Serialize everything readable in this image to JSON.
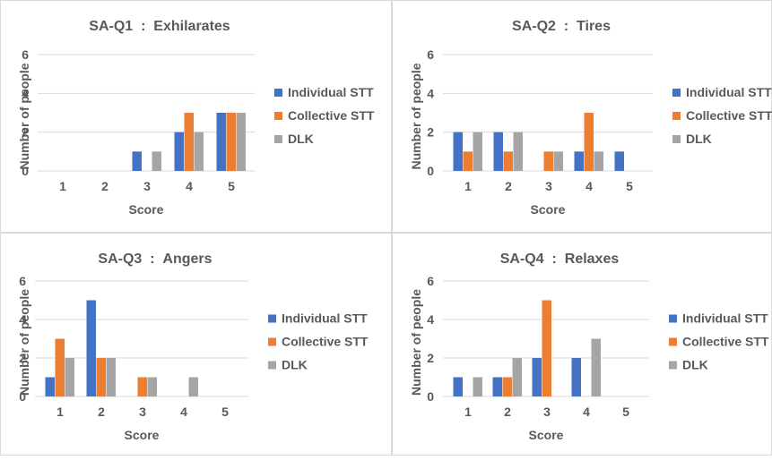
{
  "colors": {
    "individual": "#4472C4",
    "collective": "#ED7D31",
    "dlk": "#A5A5A5",
    "gridline": "#D9D9D9",
    "axis": "#D9D9D9",
    "text": "#595959",
    "border": "#D9D9D9"
  },
  "chart_data": [
    {
      "type": "bar",
      "title": "SA-Q1  :  Exhilarates",
      "xlabel": "Score",
      "ylabel": "Number of people",
      "categories": [
        "1",
        "2",
        "3",
        "4",
        "5"
      ],
      "yticks": [
        "0",
        "2",
        "4",
        "6"
      ],
      "ylim": [
        0,
        6
      ],
      "grid": true,
      "legend_position": "right",
      "series": [
        {
          "name": "Individual STT",
          "values": [
            0,
            0,
            1,
            2,
            3
          ]
        },
        {
          "name": "Collective STT",
          "values": [
            0,
            0,
            0,
            3,
            3
          ]
        },
        {
          "name": "DLK",
          "values": [
            0,
            0,
            1,
            2,
            3
          ]
        }
      ]
    },
    {
      "type": "bar",
      "title": "SA-Q2  :  Tires",
      "xlabel": "Score",
      "ylabel": "Number of people",
      "categories": [
        "1",
        "2",
        "3",
        "4",
        "5"
      ],
      "yticks": [
        "0",
        "2",
        "4",
        "6"
      ],
      "ylim": [
        0,
        6
      ],
      "grid": true,
      "legend_position": "right",
      "series": [
        {
          "name": "Individual STT",
          "values": [
            2,
            2,
            0,
            1,
            1
          ]
        },
        {
          "name": "Collective STT",
          "values": [
            1,
            1,
            1,
            3,
            0
          ]
        },
        {
          "name": "DLK",
          "values": [
            2,
            2,
            1,
            1,
            0
          ]
        }
      ]
    },
    {
      "type": "bar",
      "title": "SA-Q3  :  Angers",
      "xlabel": "Score",
      "ylabel": "Number of people",
      "categories": [
        "1",
        "2",
        "3",
        "4",
        "5"
      ],
      "yticks": [
        "0",
        "2",
        "4",
        "6"
      ],
      "ylim": [
        0,
        6
      ],
      "grid": true,
      "legend_position": "right",
      "series": [
        {
          "name": "Individual STT",
          "values": [
            1,
            5,
            0,
            0,
            0
          ]
        },
        {
          "name": "Collective STT",
          "values": [
            3,
            2,
            1,
            0,
            0
          ]
        },
        {
          "name": "DLK",
          "values": [
            2,
            2,
            1,
            1,
            0
          ]
        }
      ]
    },
    {
      "type": "bar",
      "title": "SA-Q4  :  Relaxes",
      "xlabel": "Score",
      "ylabel": "Number of people",
      "categories": [
        "1",
        "2",
        "3",
        "4",
        "5"
      ],
      "yticks": [
        "0",
        "2",
        "4",
        "6"
      ],
      "ylim": [
        0,
        6
      ],
      "grid": true,
      "legend_position": "right",
      "series": [
        {
          "name": "Individual STT",
          "values": [
            1,
            1,
            2,
            2,
            0
          ]
        },
        {
          "name": "Collective STT",
          "values": [
            0,
            1,
            5,
            0,
            0
          ]
        },
        {
          "name": "DLK",
          "values": [
            1,
            2,
            0,
            3,
            0
          ]
        }
      ]
    }
  ]
}
